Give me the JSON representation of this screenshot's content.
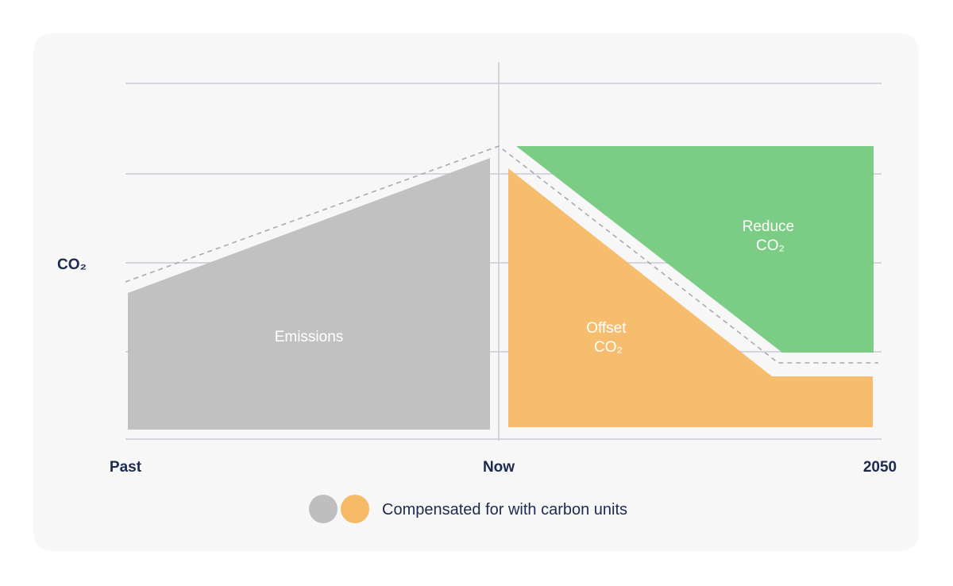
{
  "chart_data": {
    "type": "area",
    "ylabel": "CO₂",
    "x_tick_labels": [
      "Past",
      "Now",
      "2050"
    ],
    "grid": true,
    "series": [
      {
        "name": "Emissions",
        "color": "#bebebe"
      },
      {
        "name": "Offset CO₂",
        "label_lines": [
          "Offset",
          "CO₂"
        ],
        "color": "#f6b966"
      },
      {
        "name": "Reduce CO₂",
        "label_lines": [
          "Reduce",
          "CO₂"
        ],
        "color": "#74c97e"
      }
    ],
    "legend": {
      "label": "Compensated for with carbon units",
      "swatch_colors": [
        "#bebebe",
        "#f6b966"
      ],
      "placement": "bottom"
    }
  },
  "colors": {
    "text": "#1d2a4f",
    "grid": "#c9cad8",
    "card": "#f7f7f7"
  }
}
